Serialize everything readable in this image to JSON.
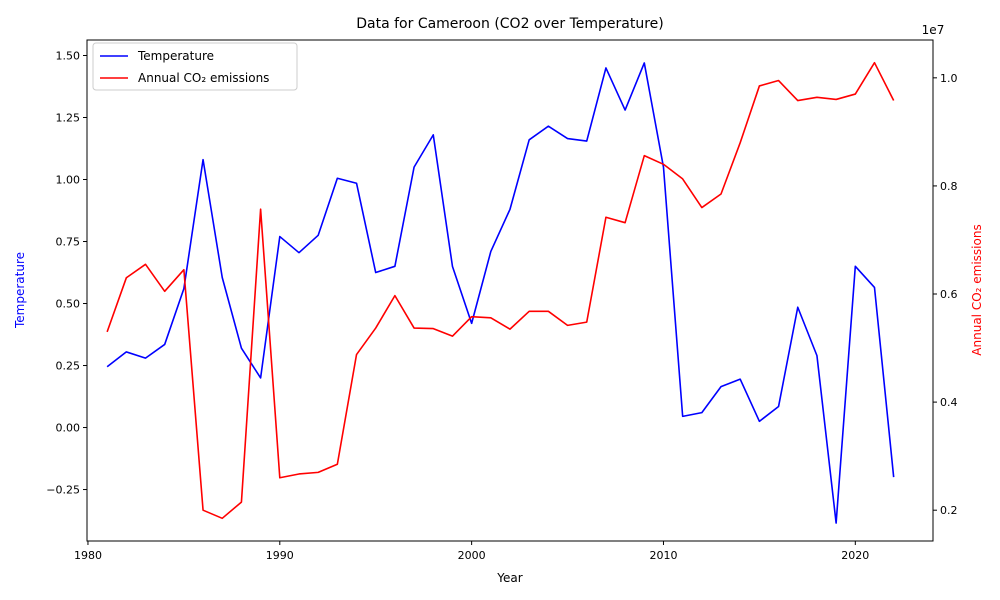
{
  "chart_data": {
    "type": "line",
    "title": "Data for Cameroon (CO2 over Temperature)",
    "xlabel": "Year",
    "ylabel_left": "Temperature",
    "ylabel_right": "Annual CO₂ emissions",
    "right_axis_offset_label": "1e7",
    "xlim": [
      1979.95,
      2024.05
    ],
    "ylim_left": [
      -0.4575,
      1.5625
    ],
    "ylim_right": [
      1.43,
      10.7
    ],
    "x_ticks": [
      1980,
      1990,
      2000,
      2010,
      2020
    ],
    "y_ticks_left": [
      -0.25,
      0.0,
      0.25,
      0.5,
      0.75,
      1.0,
      1.25,
      1.5
    ],
    "y_tick_labels_left": [
      "−0.25",
      "0.00",
      "0.25",
      "0.50",
      "0.75",
      "1.00",
      "1.25",
      "1.50"
    ],
    "y_ticks_right": [
      2,
      4,
      6,
      8,
      10
    ],
    "y_tick_labels_right": [
      "0.2",
      "0.4",
      "0.6",
      "0.8",
      "1.0"
    ],
    "x": [
      1981,
      1982,
      1983,
      1984,
      1985,
      1986,
      1987,
      1988,
      1989,
      1990,
      1991,
      1992,
      1993,
      1994,
      1995,
      1996,
      1997,
      1998,
      1999,
      2000,
      2001,
      2002,
      2003,
      2004,
      2005,
      2006,
      2007,
      2008,
      2009,
      2010,
      2011,
      2012,
      2013,
      2014,
      2015,
      2016,
      2017,
      2018,
      2019,
      2020,
      2021,
      2022
    ],
    "legend_position": "upper-left",
    "grid": false,
    "series": [
      {
        "name": "Temperature",
        "axis": "left",
        "color": "#0000ff",
        "values": [
          0.245,
          0.305,
          0.28,
          0.335,
          0.56,
          1.08,
          0.605,
          0.32,
          0.2,
          0.77,
          0.705,
          0.775,
          1.005,
          0.985,
          0.625,
          0.65,
          1.05,
          1.18,
          0.65,
          0.42,
          0.71,
          0.88,
          1.16,
          1.215,
          1.165,
          1.155,
          1.45,
          1.28,
          1.47,
          1.05,
          0.045,
          0.06,
          0.165,
          0.195,
          0.025,
          0.085,
          0.485,
          0.29,
          -0.385,
          0.65,
          0.565,
          -0.2
        ]
      },
      {
        "name": "Annual CO₂ emissions",
        "axis": "right",
        "color": "#ff0000",
        "values": [
          5.3,
          6.3,
          6.55,
          6.05,
          6.45,
          2.0,
          1.85,
          2.15,
          7.57,
          2.6,
          2.67,
          2.7,
          2.85,
          4.88,
          5.37,
          5.97,
          5.37,
          5.36,
          5.22,
          5.58,
          5.56,
          5.35,
          5.68,
          5.68,
          5.42,
          5.48,
          7.42,
          7.32,
          8.56,
          8.4,
          8.13,
          7.6,
          7.85,
          8.8,
          9.85,
          9.95,
          9.58,
          9.64,
          9.6,
          9.7,
          10.28,
          9.58
        ]
      }
    ]
  }
}
